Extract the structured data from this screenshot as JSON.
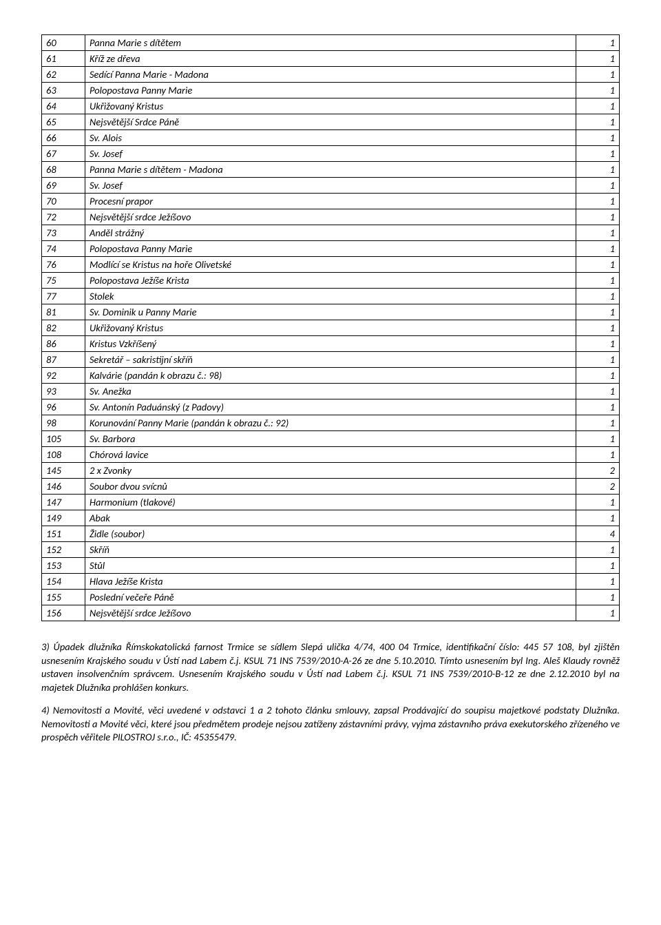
{
  "table": {
    "rows": [
      {
        "n": "60",
        "d": "Panna Marie s dítětem",
        "q": "1"
      },
      {
        "n": "61",
        "d": "Kříž ze dřeva",
        "q": "1"
      },
      {
        "n": "62",
        "d": "Sedící Panna Marie - Madona",
        "q": "1"
      },
      {
        "n": "63",
        "d": "Polopostava Panny Marie",
        "q": "1"
      },
      {
        "n": "64",
        "d": "Ukřižovaný Kristus",
        "q": "1"
      },
      {
        "n": "65",
        "d": "Nejsvětější Srdce Páně",
        "q": "1"
      },
      {
        "n": "66",
        "d": "Sv. Alois",
        "q": "1"
      },
      {
        "n": "67",
        "d": "Sv. Josef",
        "q": "1"
      },
      {
        "n": "68",
        "d": "Panna Marie s dítětem - Madona",
        "q": "1"
      },
      {
        "n": "69",
        "d": "Sv. Josef",
        "q": "1"
      },
      {
        "n": "70",
        "d": "Procesní prapor",
        "q": "1"
      },
      {
        "n": "72",
        "d": "Nejsvětější srdce Ježíšovo",
        "q": "1"
      },
      {
        "n": "73",
        "d": "Anděl strážný",
        "q": "1"
      },
      {
        "n": "74",
        "d": "Polopostava Panny Marie",
        "q": "1"
      },
      {
        "n": "76",
        "d": "Modlící se Kristus na hoře Olivetské",
        "q": "1"
      },
      {
        "n": "75",
        "d": "Polopostava Ježíše Krista",
        "q": "1"
      },
      {
        "n": "77",
        "d": "Stolek",
        "q": "1"
      },
      {
        "n": "81",
        "d": "Sv. Dominik u Panny Marie",
        "q": "1"
      },
      {
        "n": "82",
        "d": "Ukřižovaný Kristus",
        "q": "1"
      },
      {
        "n": "86",
        "d": "Kristus Vzkříšený",
        "q": "1"
      },
      {
        "n": "87",
        "d": "Sekretář – sakristijní skříň",
        "q": "1"
      },
      {
        "n": "92",
        "d": "Kalvárie (pandán k obrazu č.: 98)",
        "q": "1"
      },
      {
        "n": "93",
        "d": "Sv. Anežka",
        "q": "1"
      },
      {
        "n": "96",
        "d": "Sv. Antonín Paduánský (z Padovy)",
        "q": "1"
      },
      {
        "n": "98",
        "d": "Korunování Panny Marie (pandán k obrazu č.: 92)",
        "q": "1"
      },
      {
        "n": "105",
        "d": "Sv. Barbora",
        "q": "1"
      },
      {
        "n": "108",
        "d": "Chórová lavice",
        "q": "1"
      },
      {
        "n": "145",
        "d": "2 x Zvonky",
        "q": "2"
      },
      {
        "n": "146",
        "d": "Soubor dvou svícnů",
        "q": "2"
      },
      {
        "n": "147",
        "d": "Harmonium (tlakové)",
        "q": "1"
      },
      {
        "n": "149",
        "d": "Abak",
        "q": "1"
      },
      {
        "n": "151",
        "d": "Židle (soubor)",
        "q": "4"
      },
      {
        "n": "152",
        "d": "Skříň",
        "q": "1"
      },
      {
        "n": "153",
        "d": "Stůl",
        "q": "1"
      },
      {
        "n": "154",
        "d": "Hlava Ježíše Krista",
        "q": "1"
      },
      {
        "n": "155",
        "d": "Poslední večeře Páně",
        "q": "1"
      },
      {
        "n": "156",
        "d": "Nejsvětější srdce Ježíšovo",
        "q": "1"
      }
    ]
  },
  "paragraphs": {
    "p3": "3) Úpadek dlužníka Římskokatolická farnost Trmice se sídlem Slepá ulička 4/74, 400 04 Trmice, identifikační číslo: 445 57 108, byl zjištěn usnesením Krajského soudu v Ústí nad Labem č.j. KSUL 71 INS 7539/2010-A-26 ze dne 5.10.2010. Tímto usnesením byl Ing. Aleš Klaudy rovněž ustaven insolvenčním správcem. Usnesením Krajského soudu v Ústí nad Labem č.j. KSUL 71 INS 7539/2010-B-12 ze dne 2.12.2010 byl na majetek Dlužníka prohlášen konkurs.",
    "p4": "4) Nemovitosti a Movité, věci  uvedené v odstavci 1 a 2 tohoto článku smlouvy, zapsal Prodávající do soupisu majetkové podstaty Dlužníka. Nemovitosti a Movité věci, které jsou předmětem prodeje nejsou zatíženy zástavními právy, vyjma zástavního práva exekutorského zřízeného ve prospěch věřitele PILOSTROJ s.r.o., IČ: 45355479."
  }
}
